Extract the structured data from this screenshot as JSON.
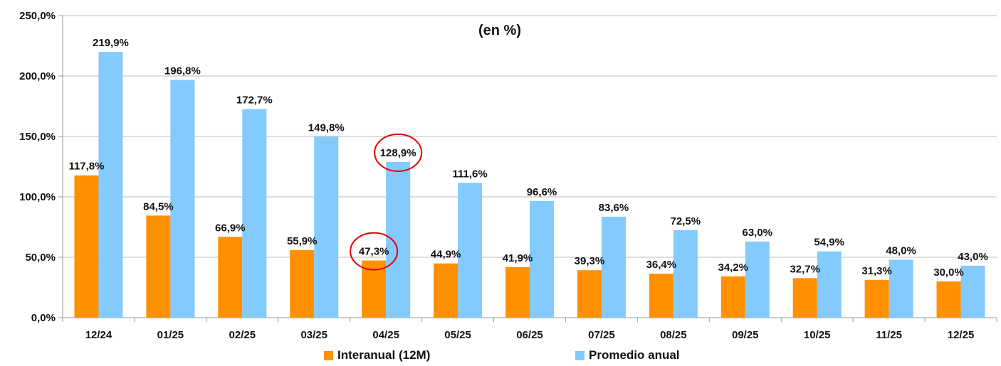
{
  "chart_data": {
    "type": "bar",
    "title": "(en %)",
    "categories": [
      "12/24",
      "01/25",
      "02/25",
      "03/25",
      "04/25",
      "05/25",
      "06/25",
      "07/25",
      "08/25",
      "09/25",
      "10/25",
      "11/25",
      "12/25"
    ],
    "series": [
      {
        "name": "Interanual (12M)",
        "color": "#ff9000",
        "values": [
          117.8,
          84.5,
          66.9,
          55.9,
          47.3,
          44.9,
          41.9,
          39.3,
          36.4,
          34.2,
          32.7,
          31.3,
          30.0
        ],
        "labels": [
          "117,8%",
          "84,5%",
          "66,9%",
          "55,9%",
          "47,3%",
          "44,9%",
          "41,9%",
          "39,3%",
          "36,4%",
          "34,2%",
          "32,7%",
          "31,3%",
          "30,0%"
        ]
      },
      {
        "name": "Promedio anual",
        "color": "#83caff",
        "values": [
          219.9,
          196.8,
          172.7,
          149.8,
          128.9,
          111.6,
          96.6,
          83.6,
          72.5,
          63.0,
          54.9,
          48.0,
          43.0
        ],
        "labels": [
          "219,9%",
          "196,8%",
          "172,7%",
          "149,8%",
          "128,9%",
          "111,6%",
          "96,6%",
          "83,6%",
          "72,5%",
          "63,0%",
          "54,9%",
          "48,0%",
          "43,0%"
        ]
      }
    ],
    "yticks": [
      0,
      50,
      100,
      150,
      200,
      250
    ],
    "ytick_labels": [
      "0,0%",
      "50,0%",
      "100,0%",
      "150,0%",
      "200,0%",
      "250,0%"
    ],
    "ylim": [
      0,
      250
    ],
    "xlabel": "",
    "ylabel": "",
    "grid": true,
    "legend_position": "bottom",
    "highlights": [
      {
        "series": 1,
        "category": "04/25",
        "shape": "circle",
        "color": "#e00000"
      },
      {
        "series": 0,
        "category": "04/25",
        "shape": "circle",
        "color": "#e00000"
      }
    ]
  }
}
